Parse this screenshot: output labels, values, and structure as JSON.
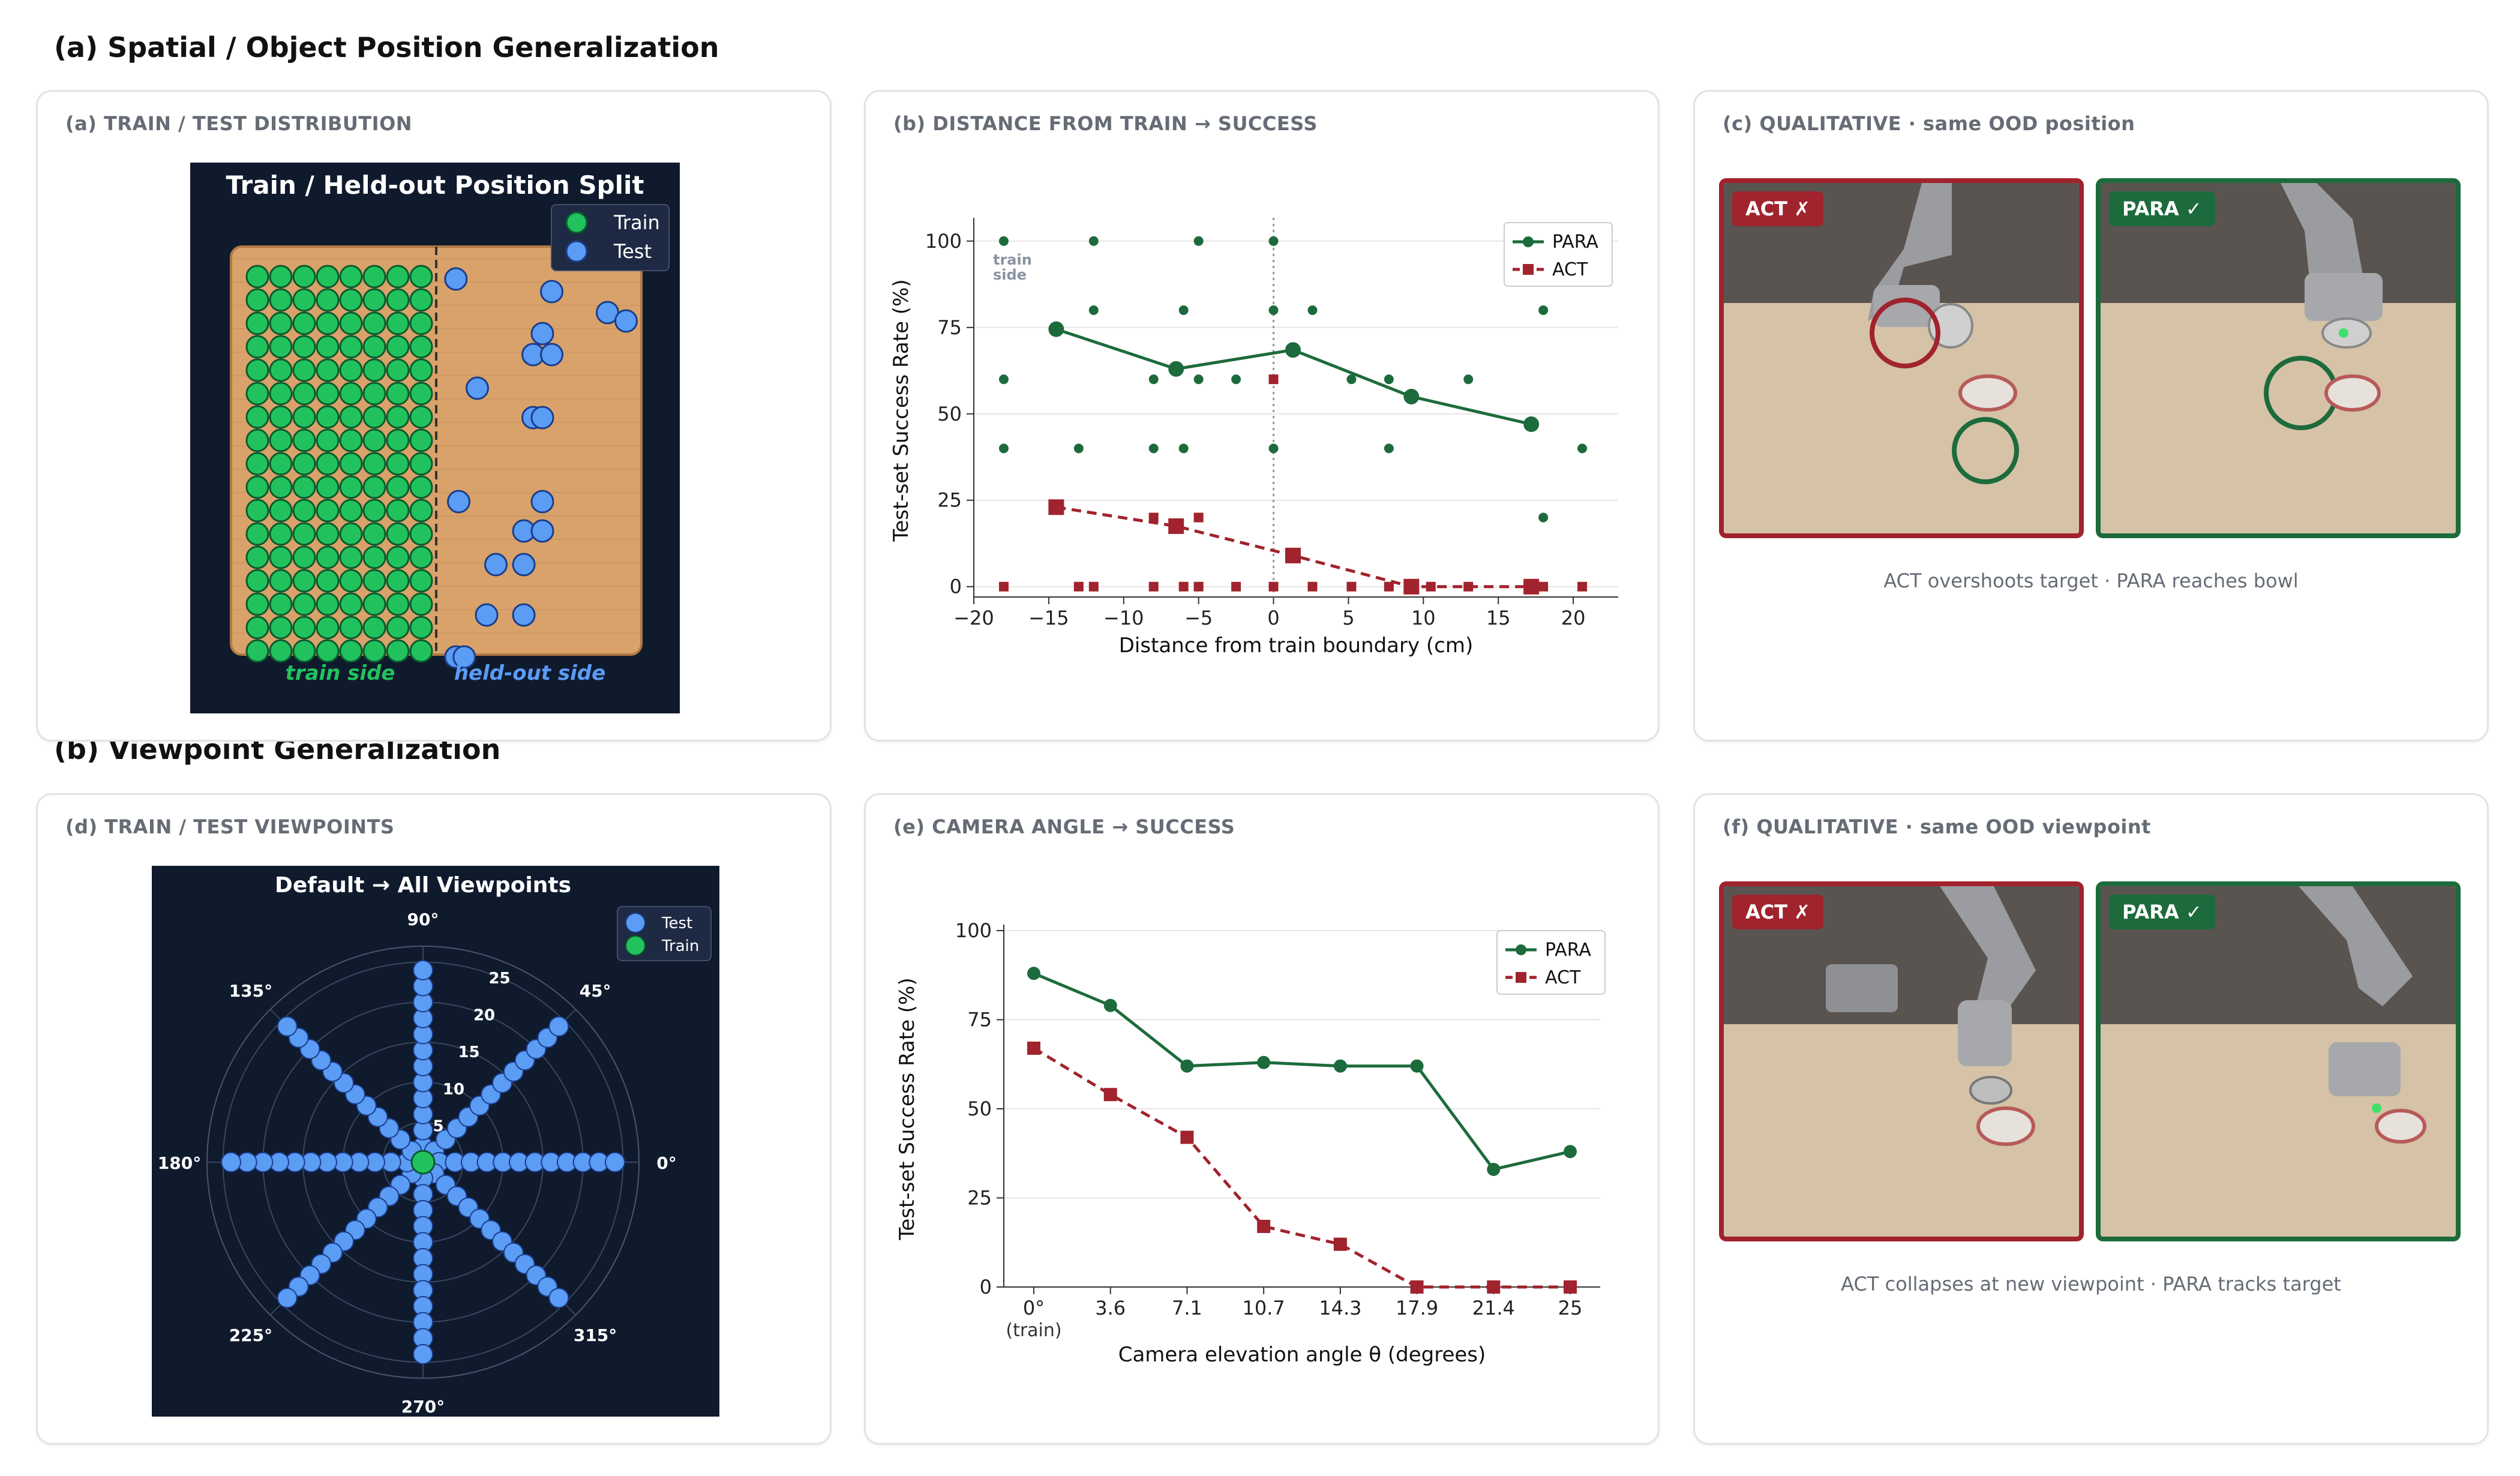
{
  "sections": {
    "a_title": "(a) Spatial / Object Position Generalization",
    "b_title": "(b) Viewpoint Generalization"
  },
  "colors": {
    "para": "#1d6b3c",
    "act": "#a0232d",
    "train_marker": "#21c25e",
    "test_marker": "#5b9cf5",
    "dark_bg": "#0f1a2d",
    "table": "#d9a26a"
  },
  "panels": {
    "a": {
      "card_title": "(a) TRAIN / TEST DISTRIBUTION",
      "plot_title": "Train / Held-out Position Split",
      "legend_train": "Train",
      "legend_test": "Test",
      "train_side": "train side",
      "heldout_side": "held-out side"
    },
    "b": {
      "card_title": "(b) DISTANCE FROM TRAIN → SUCCESS",
      "train_side_label": [
        "train",
        "side"
      ]
    },
    "c": {
      "card_title": "(c) QUALITATIVE · same OOD position",
      "badge_act": "ACT ✗",
      "badge_para": "PARA ✓",
      "caption": "ACT overshoots target · PARA reaches bowl"
    },
    "d": {
      "card_title": "(d) TRAIN / TEST VIEWPOINTS"
    },
    "e": {
      "card_title": "(e) CAMERA ANGLE → SUCCESS"
    },
    "f": {
      "card_title": "(f) QUALITATIVE · same OOD viewpoint",
      "badge_act": "ACT ✗",
      "badge_para": "PARA ✓",
      "caption": "ACT collapses at new viewpoint · PARA tracks target"
    }
  },
  "chart_data": [
    {
      "id": "distance",
      "type": "line",
      "xlabel": "Distance from train boundary (cm)",
      "ylabel": "Test-set Success Rate (%)",
      "xlim": [
        -20,
        23
      ],
      "ylim": [
        -3,
        105
      ],
      "xticks": [
        -20,
        -15,
        -10,
        -5,
        0,
        5,
        10,
        15,
        20
      ],
      "xtick_labels": [
        "−20",
        "−15",
        "−10",
        "−5",
        "0",
        "5",
        "10",
        "15",
        "20"
      ],
      "yticks": [
        0,
        25,
        50,
        75,
        100
      ],
      "grid": "horizontal",
      "legend_position": "top-right",
      "vline_x": 0,
      "series": [
        {
          "name": "PARA",
          "x": [
            -14.5,
            -6.5,
            1.3,
            9.2,
            17.2
          ],
          "y": [
            74.5,
            63,
            68.5,
            55,
            47
          ]
        },
        {
          "name": "ACT",
          "x": [
            -14.5,
            -6.5,
            1.3,
            9.2,
            17.2
          ],
          "y": [
            23,
            17.5,
            9,
            0,
            0
          ]
        }
      ],
      "scatter": {
        "PARA": [
          [
            -18,
            100
          ],
          [
            -12,
            100
          ],
          [
            -5,
            100
          ],
          [
            0,
            100
          ],
          [
            -12,
            80
          ],
          [
            -6,
            80
          ],
          [
            0,
            80
          ],
          [
            2.6,
            80
          ],
          [
            18,
            80
          ],
          [
            -18,
            60
          ],
          [
            -8,
            60
          ],
          [
            -5,
            60
          ],
          [
            -2.5,
            60
          ],
          [
            5.2,
            60
          ],
          [
            7.7,
            60
          ],
          [
            13,
            60
          ],
          [
            -18,
            40
          ],
          [
            -13,
            40
          ],
          [
            -8,
            40
          ],
          [
            -6,
            40
          ],
          [
            0,
            40
          ],
          [
            7.7,
            40
          ],
          [
            20.6,
            40
          ],
          [
            18,
            20
          ]
        ],
        "ACT": [
          [
            -18,
            0
          ],
          [
            -13,
            0
          ],
          [
            -12,
            0
          ],
          [
            -8,
            0
          ],
          [
            -6,
            0
          ],
          [
            -5,
            0
          ],
          [
            -2.5,
            0
          ],
          [
            0,
            0
          ],
          [
            2.6,
            0
          ],
          [
            5.2,
            0
          ],
          [
            7.7,
            0
          ],
          [
            10.5,
            0
          ],
          [
            13,
            0
          ],
          [
            18,
            0
          ],
          [
            20.6,
            0
          ],
          [
            -8,
            20
          ],
          [
            -5,
            20
          ],
          [
            0,
            60
          ]
        ]
      }
    },
    {
      "id": "camera",
      "type": "line",
      "xlabel": "Camera elevation angle θ (degrees)",
      "ylabel": "Test-set Success Rate (%)",
      "categories": [
        "0°",
        "3.6",
        "7.1",
        "10.7",
        "14.3",
        "17.9",
        "21.4",
        "25"
      ],
      "sub_label_first": "(train)",
      "ylim": [
        0,
        100
      ],
      "yticks": [
        0,
        25,
        50,
        75,
        100
      ],
      "grid": "horizontal",
      "legend_position": "top-right",
      "series": [
        {
          "name": "PARA",
          "values": [
            88,
            79,
            62,
            63,
            62,
            62,
            33,
            38
          ]
        },
        {
          "name": "ACT",
          "values": [
            67,
            54,
            42,
            17,
            12,
            0,
            0,
            0
          ]
        }
      ]
    },
    {
      "id": "positions",
      "type": "scatter",
      "title": "Train / Held-out Position Split",
      "series": [
        {
          "name": "Train",
          "grid_cols": 8,
          "grid_rows": 17
        },
        {
          "name": "Test",
          "points": [
            [
              0.35,
              0.02
            ],
            [
              5.5,
              0.05
            ],
            [
              8.5,
              0.1
            ],
            [
              9.5,
              0.12
            ],
            [
              5,
              0.15
            ],
            [
              4.5,
              0.2
            ],
            [
              5.5,
              0.2
            ],
            [
              1.5,
              0.28
            ],
            [
              4.5,
              0.35
            ],
            [
              5,
              0.35
            ],
            [
              0.5,
              0.55
            ],
            [
              5,
              0.55
            ],
            [
              4,
              0.62
            ],
            [
              5,
              0.62
            ],
            [
              2.5,
              0.7
            ],
            [
              4,
              0.7
            ],
            [
              2,
              0.82
            ],
            [
              4,
              0.82
            ],
            [
              0.35,
              0.92
            ],
            [
              0.8,
              0.92
            ]
          ]
        }
      ]
    },
    {
      "id": "viewpoints",
      "type": "scatter",
      "subtype": "polar",
      "title": "Default → All Viewpoints",
      "legend": [
        "Test",
        "Train"
      ],
      "angle_labels": [
        "90°",
        "45°",
        "0°",
        "315°",
        "270°",
        "225°",
        "180°",
        "135°"
      ],
      "angles_deg": [
        90,
        45,
        0,
        315,
        270,
        225,
        180,
        135
      ],
      "radial_ticks": [
        5,
        10,
        15,
        20,
        25
      ],
      "test_radii": [
        2,
        4,
        6,
        8,
        10,
        12,
        14,
        16,
        18,
        20,
        22,
        24
      ],
      "train_radii": [
        0
      ]
    }
  ]
}
